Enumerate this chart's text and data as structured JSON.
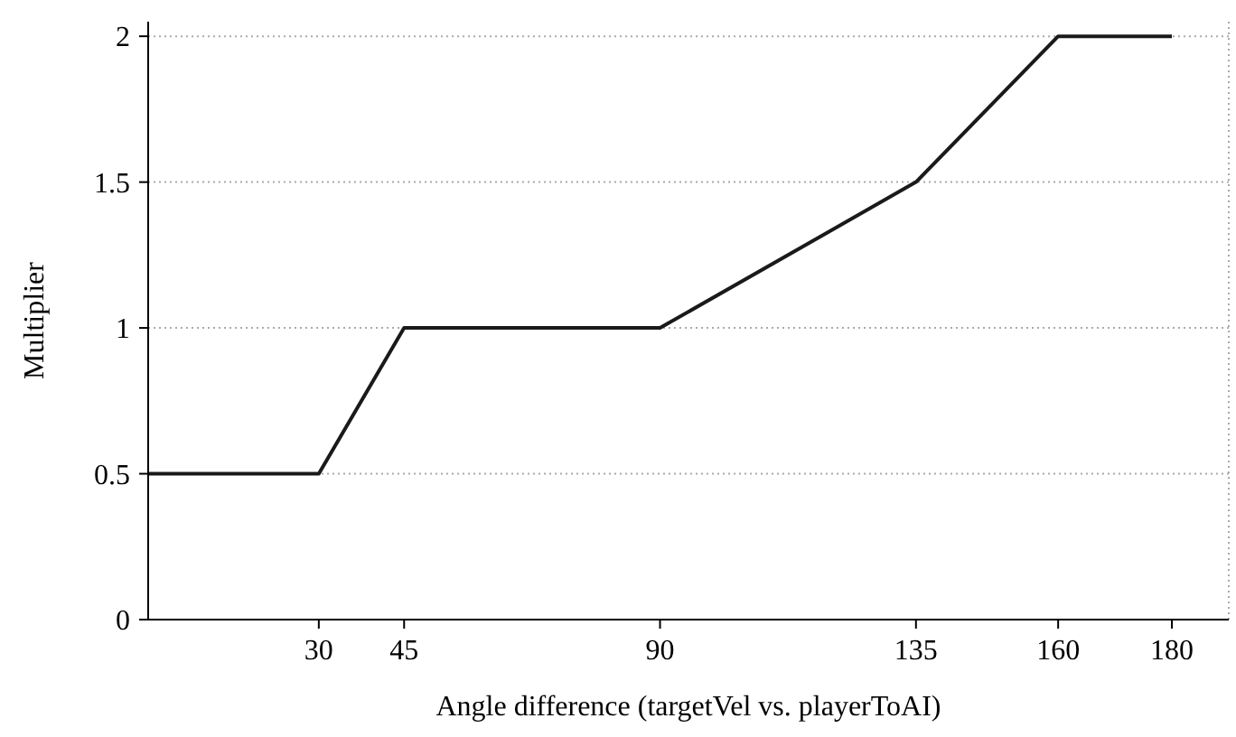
{
  "chart_data": {
    "type": "line",
    "xlabel": "Angle difference (targetVel vs. playerToAI)",
    "ylabel": "Multiplier",
    "x": [
      0,
      30,
      45,
      90,
      135,
      160,
      180
    ],
    "series": [
      {
        "color": "#1a1a1a",
        "values": [
          0.5,
          0.5,
          1,
          1,
          1.5,
          2,
          2
        ]
      }
    ],
    "xlim": [
      0,
      190
    ],
    "xticks": [
      30,
      45,
      90,
      135,
      160,
      180
    ],
    "ylim": [
      0,
      2.05
    ],
    "yticks": [
      0,
      {
        "value": 0.5,
        "label": "0.5"
      },
      1,
      {
        "value": 1.5,
        "label": "1.5"
      },
      2
    ],
    "grid": "y",
    "line_style": "solid"
  }
}
